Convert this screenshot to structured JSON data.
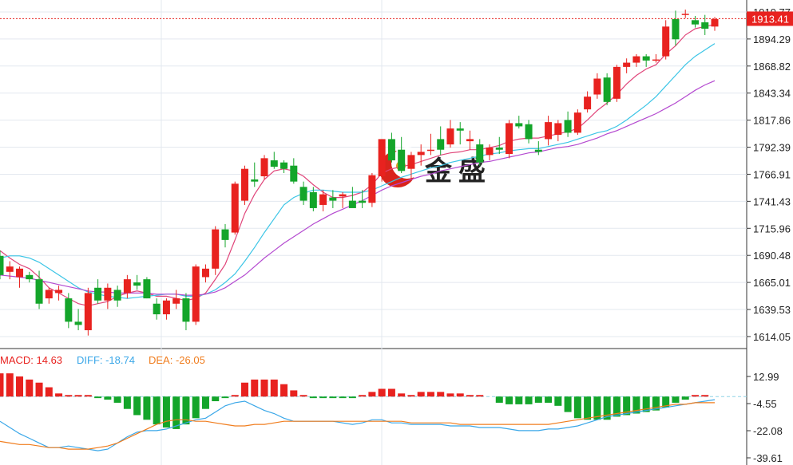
{
  "colors": {
    "up": "#e8221f",
    "down": "#14a52a",
    "ma_fast": "#e0457a",
    "ma_mid": "#3cc5e6",
    "ma_slow": "#b44ad0",
    "diff_line": "#3aa7e8",
    "dea_line": "#f07d1e",
    "grid": "#e3e8ef",
    "axis": "#333333",
    "price_marker": "#e8221f",
    "label_bg": "#e8221f",
    "logo_red": "#d9241c",
    "logo_gold": "#e0a32a"
  },
  "watermark": {
    "text": "金盛"
  },
  "price_panel": {
    "price_labels": [
      "1919.77",
      "1894.29",
      "1868.82",
      "1843.34",
      "1817.86",
      "1792.39",
      "1766.91",
      "1741.43",
      "1715.96",
      "1690.48",
      "1665.01",
      "1639.53",
      "1614.05"
    ],
    "current_price": "1913.41"
  },
  "macd_panel": {
    "legend": {
      "macd": "MACD: 14.63",
      "diff": "DIFF: -18.74",
      "dea": "DEA: -26.05"
    },
    "labels": [
      "12.99",
      "-4.55",
      "-22.08",
      "-39.61"
    ]
  },
  "chart_data": {
    "type": "candlestick",
    "price_axis": {
      "ylim": [
        1608.0,
        1922.0
      ],
      "ticks": [
        1919.77,
        1894.29,
        1868.82,
        1843.34,
        1817.86,
        1792.39,
        1766.91,
        1741.43,
        1715.96,
        1690.48,
        1665.01,
        1639.53,
        1614.05
      ]
    },
    "current_price": 1913.41,
    "candles": [
      [
        1690,
        1695,
        1668,
        1672
      ],
      [
        1675,
        1685,
        1668,
        1680
      ],
      [
        1670,
        1680,
        1660,
        1678
      ],
      [
        1672,
        1675,
        1665,
        1668
      ],
      [
        1668,
        1676,
        1640,
        1645
      ],
      [
        1650,
        1660,
        1645,
        1658
      ],
      [
        1655,
        1662,
        1648,
        1658
      ],
      [
        1650,
        1655,
        1622,
        1628
      ],
      [
        1628,
        1640,
        1620,
        1625
      ],
      [
        1620,
        1660,
        1615,
        1655
      ],
      [
        1660,
        1668,
        1645,
        1648
      ],
      [
        1648,
        1664,
        1640,
        1660
      ],
      [
        1658,
        1662,
        1642,
        1648
      ],
      [
        1655,
        1672,
        1650,
        1668
      ],
      [
        1665,
        1672,
        1658,
        1662
      ],
      [
        1668,
        1670,
        1650,
        1650
      ],
      [
        1645,
        1650,
        1630,
        1635
      ],
      [
        1635,
        1650,
        1630,
        1648
      ],
      [
        1645,
        1658,
        1640,
        1650
      ],
      [
        1650,
        1655,
        1620,
        1628
      ],
      [
        1628,
        1682,
        1625,
        1680
      ],
      [
        1670,
        1682,
        1665,
        1678
      ],
      [
        1678,
        1718,
        1672,
        1715
      ],
      [
        1715,
        1720,
        1698,
        1705
      ],
      [
        1712,
        1760,
        1710,
        1758
      ],
      [
        1742,
        1775,
        1738,
        1772
      ],
      [
        1762,
        1778,
        1755,
        1760
      ],
      [
        1765,
        1785,
        1762,
        1782
      ],
      [
        1780,
        1788,
        1772,
        1774
      ],
      [
        1778,
        1780,
        1768,
        1772
      ],
      [
        1775,
        1782,
        1758,
        1760
      ],
      [
        1755,
        1760,
        1738,
        1742
      ],
      [
        1750,
        1755,
        1732,
        1735
      ],
      [
        1738,
        1752,
        1732,
        1748
      ],
      [
        1745,
        1752,
        1735,
        1742
      ],
      [
        1746,
        1750,
        1735,
        1748
      ],
      [
        1742,
        1755,
        1738,
        1735
      ],
      [
        1742,
        1752,
        1735,
        1740
      ],
      [
        1740,
        1768,
        1736,
        1766
      ],
      [
        1765,
        1800,
        1760,
        1800
      ],
      [
        1800,
        1806,
        1778,
        1780
      ],
      [
        1790,
        1802,
        1768,
        1770
      ],
      [
        1772,
        1788,
        1762,
        1785
      ],
      [
        1785,
        1795,
        1775,
        1788
      ],
      [
        1790,
        1805,
        1785,
        1790
      ],
      [
        1800,
        1812,
        1785,
        1790
      ],
      [
        1795,
        1818,
        1792,
        1810
      ],
      [
        1810,
        1816,
        1795,
        1808
      ],
      [
        1798,
        1808,
        1790,
        1800
      ],
      [
        1795,
        1800,
        1775,
        1778
      ],
      [
        1785,
        1795,
        1780,
        1792
      ],
      [
        1792,
        1802,
        1786,
        1790
      ],
      [
        1786,
        1818,
        1782,
        1815
      ],
      [
        1815,
        1822,
        1810,
        1812
      ],
      [
        1814,
        1818,
        1796,
        1800
      ],
      [
        1790,
        1798,
        1785,
        1788
      ],
      [
        1800,
        1822,
        1794,
        1816
      ],
      [
        1804,
        1818,
        1798,
        1815
      ],
      [
        1818,
        1826,
        1802,
        1806
      ],
      [
        1806,
        1828,
        1804,
        1825
      ],
      [
        1828,
        1845,
        1825,
        1840
      ],
      [
        1842,
        1862,
        1838,
        1857
      ],
      [
        1858,
        1862,
        1832,
        1835
      ],
      [
        1838,
        1870,
        1835,
        1868
      ],
      [
        1868,
        1876,
        1862,
        1872
      ],
      [
        1872,
        1880,
        1868,
        1878
      ],
      [
        1878,
        1880,
        1868,
        1874
      ],
      [
        1875,
        1880,
        1872,
        1875
      ],
      [
        1878,
        1912,
        1875,
        1906
      ],
      [
        1913,
        1921,
        1888,
        1894
      ],
      [
        1917,
        1922,
        1914,
        1918
      ],
      [
        1912,
        1916,
        1905,
        1908
      ],
      [
        1910,
        1917,
        1898,
        1904
      ],
      [
        1906,
        1915,
        1902,
        1913
      ]
    ],
    "ma_fast": [
      1695,
      1688,
      1682,
      1678,
      1670,
      1660,
      1655,
      1650,
      1645,
      1643,
      1645,
      1647,
      1652,
      1655,
      1657,
      1655,
      1652,
      1652,
      1650,
      1648,
      1650,
      1655,
      1668,
      1682,
      1705,
      1730,
      1748,
      1762,
      1770,
      1772,
      1770,
      1765,
      1757,
      1750,
      1745,
      1745,
      1747,
      1750,
      1757,
      1768,
      1772,
      1774,
      1776,
      1779,
      1782,
      1785,
      1787,
      1788,
      1790,
      1790,
      1792,
      1794,
      1798,
      1800,
      1801,
      1801,
      1803,
      1805,
      1807,
      1810,
      1818,
      1827,
      1834,
      1842,
      1852,
      1860,
      1866,
      1870,
      1880,
      1888,
      1898,
      1904,
      1906,
      1908
    ],
    "ma_mid": [
      1688,
      1690,
      1690,
      1688,
      1684,
      1678,
      1672,
      1666,
      1660,
      1656,
      1654,
      1652,
      1651,
      1650,
      1651,
      1652,
      1653,
      1654,
      1654,
      1652,
      1652,
      1654,
      1658,
      1665,
      1673,
      1685,
      1698,
      1712,
      1725,
      1738,
      1745,
      1749,
      1752,
      1752,
      1751,
      1750,
      1750,
      1750,
      1752,
      1756,
      1760,
      1764,
      1767,
      1770,
      1773,
      1775,
      1778,
      1780,
      1782,
      1784,
      1786,
      1787,
      1789,
      1790,
      1791,
      1791,
      1793,
      1795,
      1797,
      1800,
      1803,
      1806,
      1808,
      1812,
      1818,
      1825,
      1832,
      1840,
      1850,
      1860,
      1870,
      1878,
      1884,
      1890
    ],
    "ma_slow": [
      1672,
      1671,
      1670,
      1669,
      1667,
      1665,
      1663,
      1661,
      1659,
      1657,
      1656,
      1656,
      1655,
      1655,
      1655,
      1655,
      1654,
      1654,
      1654,
      1653,
      1653,
      1654,
      1656,
      1660,
      1666,
      1672,
      1680,
      1688,
      1695,
      1702,
      1708,
      1714,
      1720,
      1725,
      1730,
      1734,
      1738,
      1742,
      1747,
      1752,
      1756,
      1759,
      1762,
      1765,
      1767,
      1770,
      1772,
      1774,
      1776,
      1778,
      1779,
      1781,
      1783,
      1785,
      1787,
      1788,
      1790,
      1792,
      1793,
      1795,
      1798,
      1801,
      1805,
      1808,
      1812,
      1816,
      1820,
      1824,
      1829,
      1834,
      1840,
      1846,
      1851,
      1855
    ],
    "macd_axis": {
      "ylim": [
        -39.61,
        17.0
      ],
      "ticks": [
        12.99,
        -4.55,
        -22.08,
        -39.61
      ]
    },
    "macd_hist": [
      15,
      15,
      13,
      11,
      9,
      6,
      2,
      1,
      1,
      1,
      -1,
      -2,
      -4,
      -8,
      -12,
      -15,
      -18,
      -20,
      -21,
      -18,
      -14,
      -8,
      -3,
      -1,
      1,
      9,
      11,
      11,
      11,
      8,
      4,
      1,
      -1,
      -1,
      -1,
      -1,
      -1,
      1,
      3,
      5,
      5,
      2,
      1,
      3,
      3,
      3,
      2,
      2,
      1,
      1,
      0,
      -4,
      -5,
      -5,
      -5,
      -4,
      -4,
      -6,
      -10,
      -14,
      -15,
      -15,
      -15,
      -13,
      -12,
      -11,
      -10,
      -9,
      -7,
      -4,
      -2,
      1,
      1,
      0
    ],
    "macd_last": 14.63,
    "diff": [
      -16,
      -20,
      -24,
      -27,
      -30,
      -33,
      -33,
      -32,
      -33,
      -34,
      -35,
      -34,
      -30,
      -26,
      -23,
      -22,
      -22,
      -21,
      -19,
      -17,
      -15,
      -14,
      -10,
      -6,
      -4,
      -3,
      -6,
      -9,
      -11,
      -14,
      -16,
      -16,
      -16,
      -16,
      -16,
      -17,
      -18,
      -17,
      -15,
      -15,
      -17,
      -17,
      -18,
      -18,
      -18,
      -18,
      -19,
      -19,
      -19,
      -20,
      -20,
      -20,
      -21,
      -22,
      -22,
      -22,
      -21,
      -21,
      -20,
      -19,
      -17,
      -15,
      -13,
      -12,
      -11,
      -10,
      -9,
      -8,
      -7,
      -6,
      -5,
      -4,
      -3,
      -2
    ],
    "diff_last": -18.74,
    "dea": [
      -29,
      -30,
      -31,
      -31,
      -32,
      -33,
      -33,
      -34,
      -34,
      -34,
      -33,
      -32,
      -30,
      -27,
      -24,
      -21,
      -18,
      -16,
      -15,
      -15,
      -16,
      -16,
      -17,
      -18,
      -19,
      -19,
      -18,
      -18,
      -17,
      -16,
      -16,
      -16,
      -16,
      -16,
      -16,
      -16,
      -16,
      -16,
      -16,
      -16,
      -16,
      -16,
      -17,
      -17,
      -17,
      -17,
      -17,
      -18,
      -18,
      -18,
      -18,
      -18,
      -18,
      -18,
      -18,
      -18,
      -18,
      -17,
      -16,
      -15,
      -14,
      -13,
      -12,
      -11,
      -10,
      -9,
      -8,
      -7,
      -6,
      -5,
      -5,
      -4,
      -4,
      -4
    ],
    "dea_last": -26.05
  }
}
